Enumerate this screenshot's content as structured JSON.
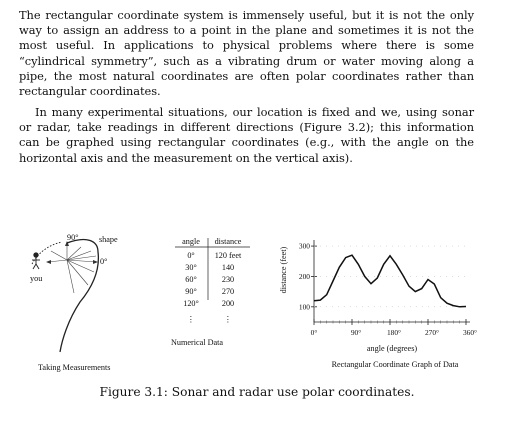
{
  "paragraphs": [
    "The rectangular coordinate system is immensely useful, but it is not the only way to assign an address to a point in the plane and sometimes it is not the most useful. In applications to physical problems where there is some “cylindrical symmetry”, such as a vibrating drum or water moving along a pipe, the most natural coordinates are often polar coordinates rather than rectangular coordinates.",
    "In many experimental situations, our location is fixed and we, using sonar or radar, take readings in different directions (Figure 3.2); this information can be graphed using rectangular coordinates (e.g., with the angle on the horizontal axis and the measurement on the vertical axis)."
  ],
  "figure": {
    "caption": "Figure 3.1: Sonar and radar use polar coordinates.",
    "panel_measure": {
      "label_90": "90°",
      "label_0": "0°",
      "shape_label": "shape",
      "you_label": "you",
      "caption": "Taking Measurements"
    },
    "table": {
      "col_angle": "angle",
      "col_distance": "distance",
      "rows": [
        {
          "angle": "0°",
          "distance": "120 feet"
        },
        {
          "angle": "30°",
          "distance": "140"
        },
        {
          "angle": "60°",
          "distance": "230"
        },
        {
          "angle": "90°",
          "distance": "270"
        },
        {
          "angle": "120°",
          "distance": "200"
        }
      ],
      "ellipsis": "⋮",
      "caption": "Numerical Data"
    },
    "chart_caption": "Rectangular Coordinate Graph of Data"
  },
  "chart_data": {
    "type": "line",
    "title": "",
    "xlabel": "angle (degrees)",
    "ylabel": "distance (feet)",
    "x_ticks": [
      "0°",
      "90°",
      "180°",
      "270°",
      "360°"
    ],
    "y_ticks": [
      "100",
      "200",
      "300"
    ],
    "xlim": [
      0,
      360
    ],
    "ylim": [
      50,
      320
    ],
    "grid": false,
    "series": [
      {
        "x": [
          0,
          15,
          30,
          45,
          60,
          75,
          90,
          105,
          120,
          135,
          150,
          165,
          180,
          195,
          210,
          225,
          240,
          255,
          270,
          285,
          300,
          315,
          330,
          345,
          360
        ],
        "y": [
          120,
          122,
          140,
          185,
          230,
          262,
          270,
          240,
          200,
          176,
          195,
          240,
          268,
          240,
          205,
          168,
          150,
          160,
          190,
          175,
          130,
          112,
          104,
          100,
          101
        ]
      }
    ]
  }
}
